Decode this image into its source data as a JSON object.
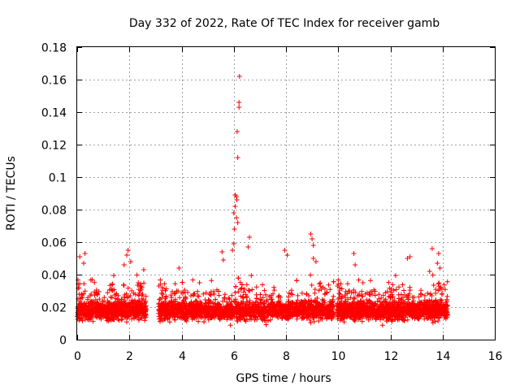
{
  "chart_data": {
    "type": "scatter",
    "title": "Day 332 of 2022, Rate Of TEC Index for receiver gamb",
    "xlabel": "GPS time / hours",
    "ylabel": "ROTI / TECUs",
    "xlim": [
      0,
      16
    ],
    "ylim": [
      0,
      0.18
    ],
    "xticks": [
      0,
      2,
      4,
      6,
      8,
      10,
      12,
      14,
      16
    ],
    "xtick_labels": [
      "0",
      "2",
      "4",
      "6",
      "8",
      "10",
      "12",
      "14",
      "16"
    ],
    "yticks": [
      0,
      0.02,
      0.04,
      0.06,
      0.08,
      0.1,
      0.12,
      0.14,
      0.16,
      0.18
    ],
    "ytick_labels": [
      "0",
      "0.02",
      "0.04",
      "0.06",
      "0.08",
      "0.1",
      "0.12",
      "0.14",
      "0.16",
      "0.18"
    ],
    "grid": true,
    "marker": "+",
    "marker_color": "#ff0000",
    "data_segments": [
      {
        "x_start": 0.0,
        "x_end": 2.65,
        "typical_range": [
          0.005,
          0.035
        ]
      },
      {
        "x_start": 3.1,
        "x_end": 9.85,
        "typical_range": [
          0.005,
          0.035
        ]
      },
      {
        "x_start": 9.95,
        "x_end": 14.2,
        "typical_range": [
          0.005,
          0.035
        ]
      }
    ],
    "highlight_points": [
      {
        "x": 0.1,
        "y": 0.051
      },
      {
        "x": 0.3,
        "y": 0.053
      },
      {
        "x": 0.25,
        "y": 0.047
      },
      {
        "x": 1.8,
        "y": 0.046
      },
      {
        "x": 1.9,
        "y": 0.052
      },
      {
        "x": 1.95,
        "y": 0.055
      },
      {
        "x": 2.05,
        "y": 0.048
      },
      {
        "x": 2.55,
        "y": 0.043
      },
      {
        "x": 3.9,
        "y": 0.044
      },
      {
        "x": 5.55,
        "y": 0.054
      },
      {
        "x": 5.6,
        "y": 0.049
      },
      {
        "x": 5.95,
        "y": 0.055
      },
      {
        "x": 6.0,
        "y": 0.059
      },
      {
        "x": 6.02,
        "y": 0.068
      },
      {
        "x": 6.0,
        "y": 0.078
      },
      {
        "x": 6.05,
        "y": 0.082
      },
      {
        "x": 6.05,
        "y": 0.089
      },
      {
        "x": 6.1,
        "y": 0.088
      },
      {
        "x": 6.12,
        "y": 0.086
      },
      {
        "x": 6.1,
        "y": 0.075
      },
      {
        "x": 6.15,
        "y": 0.072
      },
      {
        "x": 6.15,
        "y": 0.112
      },
      {
        "x": 6.13,
        "y": 0.128
      },
      {
        "x": 6.2,
        "y": 0.143
      },
      {
        "x": 6.2,
        "y": 0.146
      },
      {
        "x": 6.22,
        "y": 0.162
      },
      {
        "x": 6.6,
        "y": 0.063
      },
      {
        "x": 6.55,
        "y": 0.057
      },
      {
        "x": 7.95,
        "y": 0.055
      },
      {
        "x": 8.05,
        "y": 0.052
      },
      {
        "x": 8.95,
        "y": 0.065
      },
      {
        "x": 9.0,
        "y": 0.062
      },
      {
        "x": 9.05,
        "y": 0.058
      },
      {
        "x": 9.05,
        "y": 0.05
      },
      {
        "x": 9.15,
        "y": 0.048
      },
      {
        "x": 10.6,
        "y": 0.053
      },
      {
        "x": 10.65,
        "y": 0.046
      },
      {
        "x": 12.65,
        "y": 0.05
      },
      {
        "x": 12.75,
        "y": 0.051
      },
      {
        "x": 13.6,
        "y": 0.056
      },
      {
        "x": 13.85,
        "y": 0.053
      },
      {
        "x": 13.8,
        "y": 0.047
      },
      {
        "x": 13.9,
        "y": 0.044
      },
      {
        "x": 13.5,
        "y": 0.042
      }
    ]
  }
}
